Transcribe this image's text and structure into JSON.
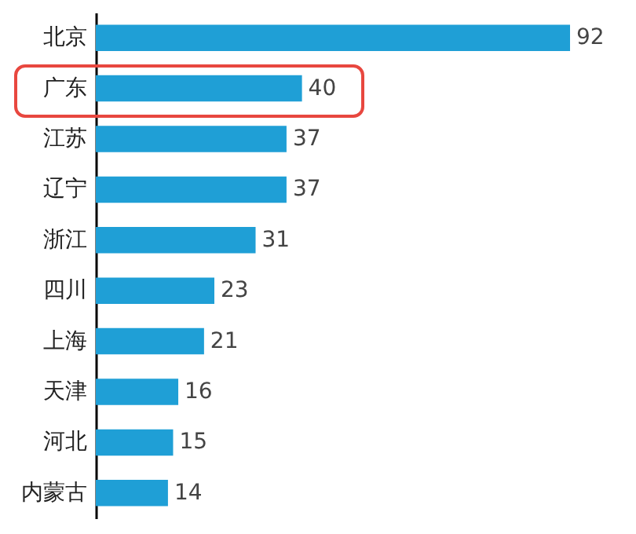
{
  "chart_data": {
    "type": "bar",
    "orientation": "horizontal",
    "categories": [
      "北京",
      "广东",
      "江苏",
      "辽宁",
      "浙江",
      "四川",
      "上海",
      "天津",
      "河北",
      "内蒙古"
    ],
    "values": [
      92,
      40,
      37,
      37,
      31,
      23,
      21,
      16,
      15,
      14
    ],
    "color": "#1f9fd6",
    "data_labels": true
  }
}
